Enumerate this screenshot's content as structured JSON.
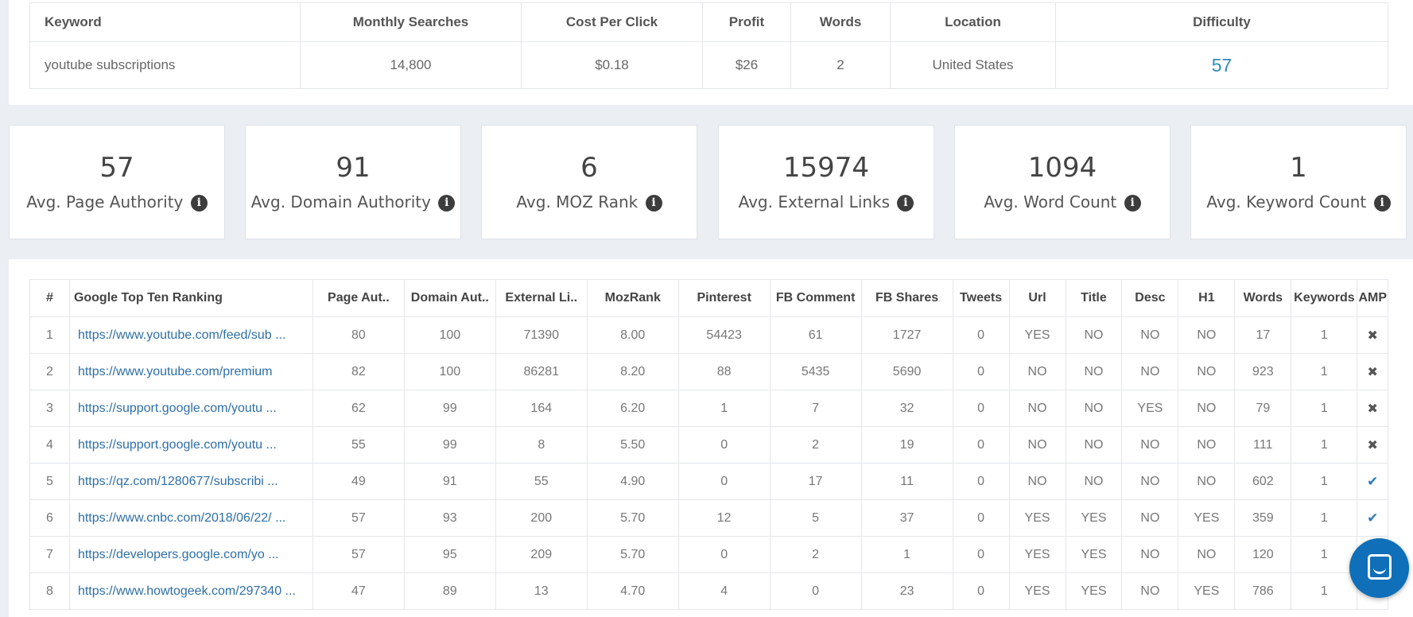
{
  "keyword_table": {
    "headers": [
      "Keyword",
      "Monthly Searches",
      "Cost Per Click",
      "Profit",
      "Words",
      "Location",
      "Difficulty"
    ],
    "row": {
      "keyword": "youtube subscriptions",
      "monthly_searches": "14,800",
      "cpc": "$0.18",
      "profit": "$26",
      "words": "2",
      "location": "United States",
      "difficulty": "57"
    }
  },
  "metrics": [
    {
      "value": "57",
      "label": "Avg. Page Authority"
    },
    {
      "value": "91",
      "label": "Avg. Domain Authority"
    },
    {
      "value": "6",
      "label": "Avg. MOZ Rank"
    },
    {
      "value": "15974",
      "label": "Avg. External Links"
    },
    {
      "value": "1094",
      "label": "Avg. Word Count"
    },
    {
      "value": "1",
      "label": "Avg. Keyword Count"
    }
  ],
  "info_glyph": "i",
  "ranking_table": {
    "headers": [
      "#",
      "Google Top Ten Ranking",
      "Page Aut..",
      "Domain Aut..",
      "External Li..",
      "MozRank",
      "Pinterest",
      "FB Comment",
      "FB Shares",
      "Tweets",
      "Url",
      "Title",
      "Desc",
      "H1",
      "Words",
      "Keywords",
      "AMP"
    ],
    "rows": [
      {
        "n": "1",
        "url": "https://www.youtube.com/feed/sub ...",
        "pa": "80",
        "da": "100",
        "el": "71390",
        "moz": "8.00",
        "pin": "54423",
        "fbc": "61",
        "fbs": "1727",
        "tw": "0",
        "u": "YES",
        "t": "NO",
        "d": "NO",
        "h1": "NO",
        "w": "17",
        "k": "1",
        "amp": "✖"
      },
      {
        "n": "2",
        "url": "https://www.youtube.com/premium",
        "pa": "82",
        "da": "100",
        "el": "86281",
        "moz": "8.20",
        "pin": "88",
        "fbc": "5435",
        "fbs": "5690",
        "tw": "0",
        "u": "NO",
        "t": "NO",
        "d": "NO",
        "h1": "NO",
        "w": "923",
        "k": "1",
        "amp": "✖"
      },
      {
        "n": "3",
        "url": "https://support.google.com/youtu ...",
        "pa": "62",
        "da": "99",
        "el": "164",
        "moz": "6.20",
        "pin": "1",
        "fbc": "7",
        "fbs": "32",
        "tw": "0",
        "u": "NO",
        "t": "NO",
        "d": "YES",
        "h1": "NO",
        "w": "79",
        "k": "1",
        "amp": "✖"
      },
      {
        "n": "4",
        "url": "https://support.google.com/youtu ...",
        "pa": "55",
        "da": "99",
        "el": "8",
        "moz": "5.50",
        "pin": "0",
        "fbc": "2",
        "fbs": "19",
        "tw": "0",
        "u": "NO",
        "t": "NO",
        "d": "NO",
        "h1": "NO",
        "w": "111",
        "k": "1",
        "amp": "✖"
      },
      {
        "n": "5",
        "url": "https://qz.com/1280677/subscribi ...",
        "pa": "49",
        "da": "91",
        "el": "55",
        "moz": "4.90",
        "pin": "0",
        "fbc": "17",
        "fbs": "11",
        "tw": "0",
        "u": "NO",
        "t": "NO",
        "d": "NO",
        "h1": "NO",
        "w": "602",
        "k": "1",
        "amp": "✔"
      },
      {
        "n": "6",
        "url": "https://www.cnbc.com/2018/06/22/ ...",
        "pa": "57",
        "da": "93",
        "el": "200",
        "moz": "5.70",
        "pin": "12",
        "fbc": "5",
        "fbs": "37",
        "tw": "0",
        "u": "YES",
        "t": "YES",
        "d": "NO",
        "h1": "YES",
        "w": "359",
        "k": "1",
        "amp": "✔"
      },
      {
        "n": "7",
        "url": "https://developers.google.com/yo ...",
        "pa": "57",
        "da": "95",
        "el": "209",
        "moz": "5.70",
        "pin": "0",
        "fbc": "2",
        "fbs": "1",
        "tw": "0",
        "u": "YES",
        "t": "YES",
        "d": "NO",
        "h1": "NO",
        "w": "120",
        "k": "1",
        "amp": "✖"
      },
      {
        "n": "8",
        "url": "https://www.howtogeek.com/297340 ...",
        "pa": "47",
        "da": "89",
        "el": "13",
        "moz": "4.70",
        "pin": "4",
        "fbc": "0",
        "fbs": "23",
        "tw": "0",
        "u": "YES",
        "t": "YES",
        "d": "NO",
        "h1": "YES",
        "w": "786",
        "k": "1",
        "amp": ""
      }
    ]
  },
  "icons": {
    "chat": "chat-bubble-icon",
    "info": "info-circle-icon",
    "amp_no": "x-icon",
    "amp_yes": "check-icon"
  },
  "colors": {
    "link": "#2e6fa7",
    "accent": "#2b8bbf",
    "chat": "#0f6fb8"
  }
}
